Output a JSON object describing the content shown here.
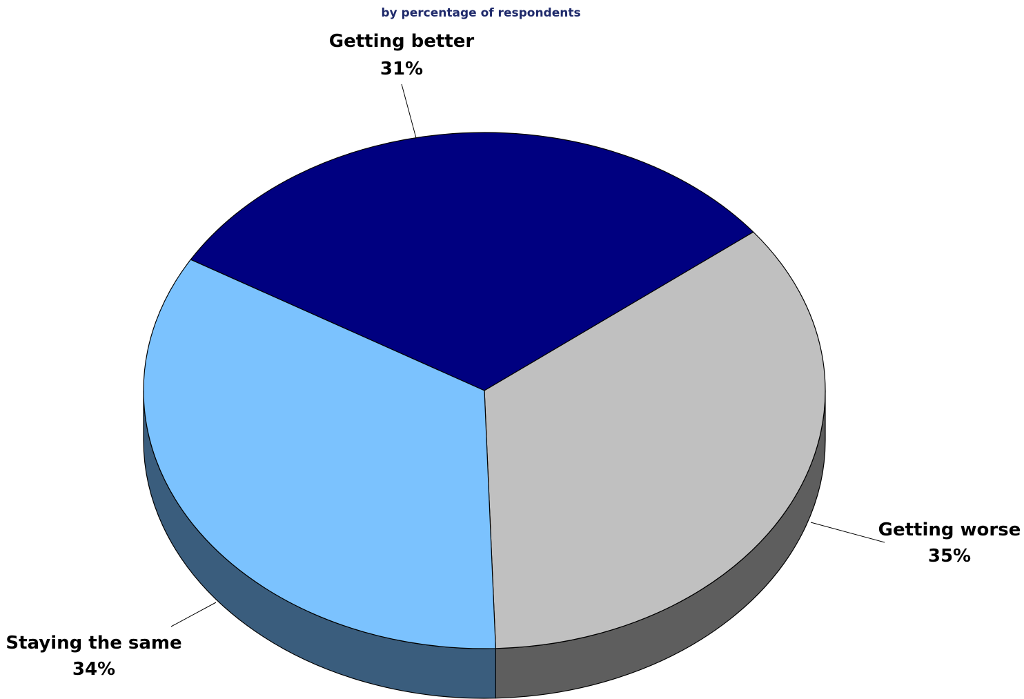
{
  "chart_data": {
    "type": "pie",
    "subtitle": "by percentage of respondents",
    "style": "3d",
    "slices": [
      {
        "name": "Getting better",
        "value": 31,
        "label": "31%",
        "color": "#000080",
        "side_color": "#000050"
      },
      {
        "name": "Getting worse",
        "value": 35,
        "label": "35%",
        "color": "#c0c0c0",
        "side_color": "#5e5e5e"
      },
      {
        "name": "Staying the same",
        "value": 34,
        "label": "34%",
        "color": "#7bc2fe",
        "side_color": "#3a5d7d"
      }
    ]
  }
}
